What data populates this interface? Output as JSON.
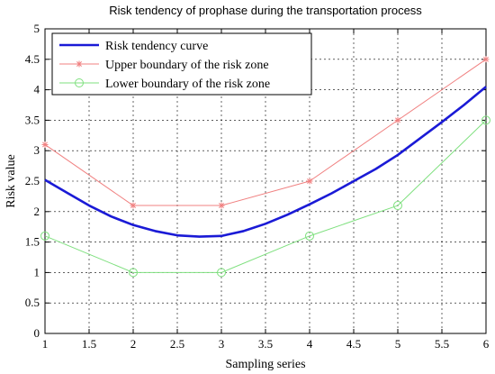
{
  "chart_data": {
    "type": "line",
    "title": "Risk tendency of prophase during the transportation process",
    "xlabel": "Sampling series",
    "ylabel": "Risk value",
    "xlim": [
      1,
      6
    ],
    "ylim": [
      0,
      5
    ],
    "xticks": [
      "1",
      "1.5",
      "2",
      "2.5",
      "3",
      "3.5",
      "4",
      "4.5",
      "5",
      "5.5",
      "6"
    ],
    "yticks": [
      "0",
      "0.5",
      "1",
      "1.5",
      "2",
      "2.5",
      "3",
      "3.5",
      "4",
      "4.5",
      "5"
    ],
    "grid": true,
    "legend_position": "top-left",
    "series": [
      {
        "name": "Risk tendency curve",
        "color": "#1a1ad6",
        "marker": "none",
        "points": [
          [
            1,
            2.52
          ],
          [
            1.25,
            2.31
          ],
          [
            1.5,
            2.1
          ],
          [
            1.75,
            1.92
          ],
          [
            2,
            1.78
          ],
          [
            2.25,
            1.68
          ],
          [
            2.5,
            1.61
          ],
          [
            2.75,
            1.59
          ],
          [
            3,
            1.6
          ],
          [
            3.25,
            1.68
          ],
          [
            3.5,
            1.8
          ],
          [
            3.75,
            1.95
          ],
          [
            4,
            2.12
          ],
          [
            4.25,
            2.3
          ],
          [
            4.5,
            2.5
          ],
          [
            4.75,
            2.7
          ],
          [
            5,
            2.93
          ],
          [
            5.25,
            3.2
          ],
          [
            5.5,
            3.47
          ],
          [
            5.75,
            3.75
          ],
          [
            6,
            4.05
          ]
        ]
      },
      {
        "name": "Upper boundary of the risk zone",
        "color": "#f08080",
        "marker": "star",
        "points": [
          [
            1,
            3.1
          ],
          [
            2,
            2.1
          ],
          [
            3,
            2.1
          ],
          [
            4,
            2.5
          ],
          [
            5,
            3.5
          ],
          [
            6,
            4.5
          ]
        ]
      },
      {
        "name": "Lower boundary of the risk zone",
        "color": "#7fe07f",
        "marker": "circle",
        "points": [
          [
            1,
            1.6
          ],
          [
            2,
            1.0
          ],
          [
            3,
            1.0
          ],
          [
            4,
            1.6
          ],
          [
            5,
            2.1
          ],
          [
            6,
            3.5
          ]
        ]
      }
    ]
  }
}
